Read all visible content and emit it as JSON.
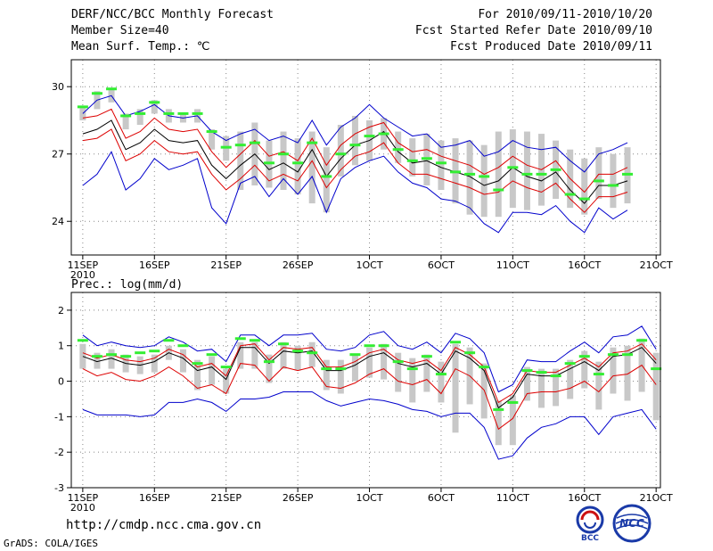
{
  "header": {
    "title": "DERF/NCC/BCC Monthly Forecast",
    "member_size": "Member Size=40",
    "variable": "Mean Surf. Temp.: ℃",
    "forecast_period": "For 2010/09/11-2010/10/20",
    "started_refer": "Fcst Started Refer Date 2010/09/10",
    "produced": "Fcst Produced Date 2010/09/11"
  },
  "footer": {
    "url": "http://cmdp.ncc.cma.gov.cn",
    "grads": "GrADS: COLA/IGES",
    "logo_bcc": "BCC",
    "logo_ncc": "NCC"
  },
  "colors": {
    "box": "#c8c8c8",
    "marker": "#33ee33",
    "mean": "#000000",
    "inner_band": "#dd0000",
    "outer_band": "#0000cc",
    "grid": "#888888"
  },
  "chart_data": [
    {
      "id": "temp",
      "type": "line",
      "title": "Mean Surf. Temp.: ℃",
      "ylim": [
        22.5,
        31.2
      ],
      "yticks": [
        24,
        27,
        30
      ],
      "xlim": [
        -0.8,
        40.3
      ],
      "xticks": [
        0,
        5,
        10,
        15,
        20,
        25,
        30,
        35,
        40
      ],
      "xticklabels": [
        "11SEP",
        "16SEP",
        "21SEP",
        "26SEP",
        "1OCT",
        "6OCT",
        "11OCT",
        "16OCT",
        "21OCT"
      ],
      "year_label": "2010",
      "grid": true,
      "mean": [
        27.9,
        28.1,
        28.5,
        27.2,
        27.5,
        28.1,
        27.6,
        27.5,
        27.6,
        26.5,
        25.9,
        26.5,
        27.0,
        26.3,
        26.6,
        26.2,
        27.2,
        26.0,
        26.8,
        27.4,
        27.6,
        28.0,
        27.1,
        26.6,
        26.7,
        26.4,
        26.2,
        26.0,
        25.6,
        25.8,
        26.4,
        26.0,
        25.8,
        26.2,
        25.4,
        24.8,
        25.6,
        25.6,
        25.8
      ],
      "inner_upper": [
        28.6,
        28.7,
        29.0,
        27.7,
        28.0,
        28.6,
        28.1,
        28.0,
        28.1,
        27.1,
        26.4,
        27.0,
        27.6,
        26.9,
        27.1,
        26.7,
        27.7,
        26.5,
        27.4,
        27.9,
        28.2,
        28.4,
        27.5,
        27.1,
        27.2,
        26.9,
        26.7,
        26.5,
        26.1,
        26.4,
        26.9,
        26.5,
        26.3,
        26.7,
        25.9,
        25.3,
        26.1,
        26.1,
        26.4
      ],
      "inner_lower": [
        27.6,
        27.7,
        28.1,
        26.7,
        27.0,
        27.6,
        27.1,
        27.0,
        27.1,
        26.1,
        25.4,
        25.9,
        26.5,
        25.8,
        26.1,
        25.8,
        26.7,
        25.5,
        26.3,
        26.9,
        27.1,
        27.5,
        26.6,
        26.1,
        26.1,
        25.9,
        25.7,
        25.5,
        25.2,
        25.3,
        25.8,
        25.5,
        25.3,
        25.7,
        25.0,
        24.4,
        25.1,
        25.1,
        25.3
      ],
      "outer_upper": [
        28.8,
        29.4,
        29.6,
        28.7,
        28.9,
        29.2,
        28.7,
        28.6,
        28.7,
        28.0,
        27.6,
        27.9,
        28.1,
        27.6,
        27.8,
        27.5,
        28.5,
        27.4,
        28.2,
        28.6,
        29.2,
        28.6,
        28.2,
        27.8,
        27.9,
        27.3,
        27.4,
        27.6,
        26.9,
        27.1,
        27.6,
        27.3,
        27.2,
        27.3,
        26.7,
        26.2,
        27.0,
        27.2,
        27.5
      ],
      "outer_lower": [
        25.6,
        26.1,
        27.1,
        25.4,
        25.9,
        26.8,
        26.3,
        26.5,
        26.8,
        24.6,
        23.9,
        25.7,
        26.0,
        25.1,
        25.9,
        25.2,
        26.0,
        24.4,
        25.9,
        26.4,
        26.7,
        26.9,
        26.2,
        25.7,
        25.5,
        25.0,
        24.9,
        24.6,
        23.9,
        23.5,
        24.4,
        24.4,
        24.3,
        24.7,
        24.0,
        23.5,
        24.6,
        24.1,
        24.5
      ],
      "box_top": [
        29.1,
        29.8,
        29.9,
        28.8,
        29.0,
        29.4,
        29.0,
        28.8,
        29.0,
        28.1,
        27.8,
        28.0,
        28.4,
        27.6,
        28.0,
        27.7,
        28.0,
        27.3,
        28.3,
        28.7,
        28.5,
        28.6,
        28.0,
        27.7,
        27.9,
        27.6,
        27.7,
        27.6,
        27.4,
        28.0,
        28.1,
        28.0,
        27.9,
        27.6,
        27.2,
        26.8,
        27.3,
        27.0,
        27.3
      ],
      "box_bottom": [
        28.5,
        29.0,
        29.3,
        28.1,
        28.3,
        28.8,
        28.4,
        28.4,
        28.4,
        27.2,
        26.7,
        25.4,
        25.6,
        25.5,
        25.4,
        25.2,
        24.8,
        24.4,
        26.0,
        26.5,
        26.7,
        27.2,
        26.6,
        26.0,
        25.6,
        25.4,
        24.8,
        24.3,
        24.2,
        24.2,
        24.6,
        24.5,
        24.7,
        25.0,
        24.6,
        24.3,
        25.0,
        24.6,
        24.8
      ],
      "marker": [
        29.1,
        29.7,
        29.9,
        28.7,
        28.8,
        29.3,
        28.8,
        28.8,
        28.8,
        28.0,
        27.3,
        27.4,
        27.5,
        26.6,
        27.0,
        26.6,
        27.5,
        26.0,
        27.0,
        27.4,
        27.8,
        27.9,
        27.2,
        26.7,
        26.8,
        26.6,
        26.2,
        26.1,
        26.0,
        25.4,
        26.4,
        26.1,
        26.1,
        26.3,
        25.2,
        25.0,
        25.8,
        25.6,
        26.1
      ]
    },
    {
      "id": "prec",
      "type": "line",
      "title": "Prec.: log(mm/d)",
      "ylim": [
        -3,
        2.5
      ],
      "yticks": [
        -3,
        -2,
        -1,
        0,
        1,
        2
      ],
      "xlim": [
        -0.8,
        40.3
      ],
      "xticks": [
        0,
        5,
        10,
        15,
        20,
        25,
        30,
        35,
        40
      ],
      "xticklabels": [
        "11SEP",
        "16SEP",
        "21SEP",
        "26SEP",
        "1OCT",
        "6OCT",
        "11OCT",
        "16OCT",
        "21OCT"
      ],
      "year_label": "2010",
      "grid": true,
      "mean": [
        0.7,
        0.55,
        0.65,
        0.5,
        0.45,
        0.55,
        0.8,
        0.65,
        0.3,
        0.4,
        0.05,
        0.95,
        0.95,
        0.5,
        0.85,
        0.8,
        0.85,
        0.3,
        0.3,
        0.45,
        0.7,
        0.8,
        0.5,
        0.4,
        0.5,
        0.2,
        0.85,
        0.65,
        0.3,
        -0.75,
        -0.45,
        0.2,
        0.15,
        0.15,
        0.35,
        0.55,
        0.3,
        0.7,
        0.75,
        0.95,
        0.5
      ],
      "inner_upper": [
        0.8,
        0.65,
        0.75,
        0.6,
        0.55,
        0.65,
        0.9,
        0.75,
        0.4,
        0.5,
        0.15,
        1.0,
        1.05,
        0.6,
        0.95,
        0.9,
        0.95,
        0.4,
        0.4,
        0.55,
        0.8,
        0.9,
        0.6,
        0.5,
        0.6,
        0.3,
        0.95,
        0.75,
        0.4,
        -0.6,
        -0.35,
        0.3,
        0.25,
        0.25,
        0.45,
        0.65,
        0.4,
        0.8,
        0.85,
        1.05,
        0.6
      ],
      "inner_lower": [
        0.35,
        0.15,
        0.25,
        0.05,
        0.0,
        0.15,
        0.4,
        0.15,
        -0.2,
        -0.1,
        -0.35,
        0.5,
        0.45,
        0.0,
        0.4,
        0.3,
        0.4,
        -0.15,
        -0.2,
        -0.05,
        0.2,
        0.35,
        0.0,
        -0.1,
        0.05,
        -0.35,
        0.35,
        0.15,
        -0.25,
        -1.35,
        -1.05,
        -0.35,
        -0.3,
        -0.3,
        -0.2,
        0.0,
        -0.3,
        0.15,
        0.2,
        0.45,
        -0.1
      ],
      "outer_upper": [
        1.3,
        1.0,
        1.1,
        1.0,
        0.95,
        1.0,
        1.25,
        1.1,
        0.85,
        0.9,
        0.55,
        1.3,
        1.3,
        1.0,
        1.3,
        1.3,
        1.35,
        0.9,
        0.85,
        0.95,
        1.3,
        1.4,
        1.0,
        0.9,
        1.1,
        0.8,
        1.35,
        1.2,
        0.8,
        -0.3,
        -0.1,
        0.6,
        0.55,
        0.55,
        0.85,
        1.1,
        0.8,
        1.25,
        1.3,
        1.55,
        0.9
      ],
      "outer_lower": [
        -0.8,
        -0.95,
        -0.95,
        -0.95,
        -1.0,
        -0.95,
        -0.6,
        -0.6,
        -0.5,
        -0.6,
        -0.85,
        -0.5,
        -0.5,
        -0.45,
        -0.3,
        -0.3,
        -0.3,
        -0.55,
        -0.7,
        -0.6,
        -0.5,
        -0.55,
        -0.65,
        -0.8,
        -0.85,
        -1.0,
        -0.9,
        -0.9,
        -1.3,
        -2.2,
        -2.1,
        -1.6,
        -1.3,
        -1.2,
        -1.0,
        -1.0,
        -1.5,
        -1.0,
        -0.9,
        -0.8,
        -1.35
      ],
      "box_top": [
        1.05,
        0.8,
        0.9,
        0.75,
        0.7,
        0.75,
        1.0,
        0.9,
        0.6,
        0.7,
        0.35,
        1.1,
        1.1,
        0.75,
        1.1,
        1.0,
        1.1,
        0.6,
        0.6,
        0.75,
        0.95,
        1.05,
        0.8,
        0.65,
        0.75,
        0.55,
        1.05,
        0.95,
        0.5,
        -0.55,
        -0.4,
        0.4,
        0.35,
        0.35,
        0.6,
        0.85,
        0.55,
        0.95,
        1.0,
        1.2,
        0.8
      ],
      "box_bottom": [
        0.35,
        0.35,
        0.35,
        0.25,
        0.2,
        0.25,
        0.6,
        0.25,
        -0.25,
        -0.1,
        -0.35,
        0.35,
        0.35,
        -0.05,
        0.35,
        0.3,
        0.4,
        -0.25,
        -0.35,
        0.0,
        0.1,
        0.05,
        -0.3,
        -0.6,
        -0.3,
        -0.6,
        -1.45,
        -0.65,
        -1.05,
        -1.8,
        -1.8,
        -0.55,
        -0.75,
        -0.7,
        -0.5,
        -0.2,
        -0.8,
        -0.35,
        -0.55,
        -0.3,
        -1.1
      ],
      "marker": [
        1.15,
        0.7,
        0.75,
        0.7,
        0.8,
        0.85,
        1.15,
        1.0,
        0.5,
        0.75,
        0.4,
        1.2,
        1.15,
        0.55,
        1.05,
        0.85,
        0.8,
        0.35,
        0.35,
        0.75,
        1.0,
        1.0,
        0.55,
        0.35,
        0.7,
        0.2,
        1.1,
        0.8,
        0.4,
        -0.8,
        -0.6,
        0.3,
        0.25,
        0.15,
        0.5,
        0.7,
        0.2,
        0.75,
        0.75,
        1.15,
        0.35
      ]
    }
  ]
}
